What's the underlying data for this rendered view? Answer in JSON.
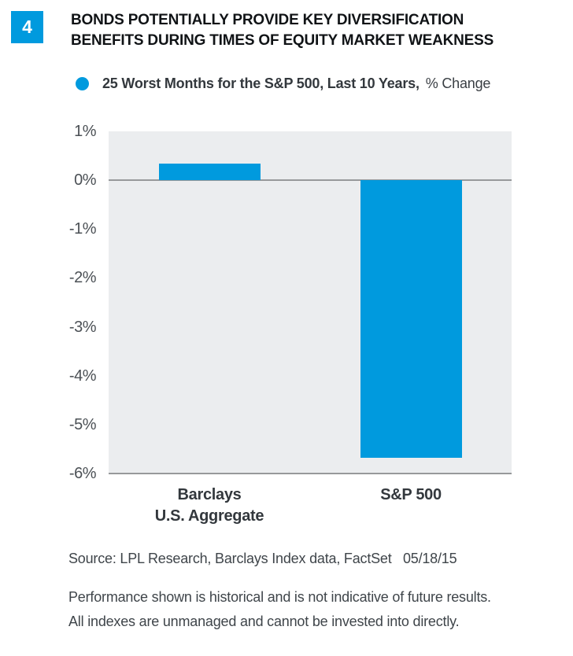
{
  "header": {
    "figure_number": "4",
    "title_lines": [
      "BONDS POTENTIALLY PROVIDE KEY DIVERSIFICATION",
      "BENEFITS DURING TIMES OF EQUITY MARKET WEAKNESS"
    ]
  },
  "legend": {
    "marker": "blue-dot",
    "label_bold": "25 Worst Months for the S&P 500, Last 10 Years,",
    "label_regular": "% Change"
  },
  "chart_data": {
    "type": "bar",
    "title": "25 Worst Months for the S&P 500, Last 10 Years, % Change",
    "categories": [
      "Barclays U.S. Aggregate",
      "S&P 500"
    ],
    "category_label_lines": [
      [
        "Barclays",
        "U.S. Aggregate"
      ],
      [
        "S&P 500"
      ]
    ],
    "values": [
      0.34,
      -5.68
    ],
    "unit": "%",
    "ylim": [
      -6,
      1
    ],
    "ytick_values": [
      1,
      0,
      -1,
      -2,
      -3,
      -4,
      -5,
      -6
    ],
    "ytick_labels": [
      "1%",
      "0%",
      "-1%",
      "-2%",
      "-3%",
      "-4%",
      "-5%",
      "-6%"
    ],
    "grid": false,
    "zero_line": true,
    "legend_position": "top",
    "bar_color": "#009ade",
    "plot_background": "#ebedef",
    "axis_line_color": "#97999b"
  },
  "colors": {
    "accent_blue": "#009ade",
    "plot_background": "#ebedef",
    "axis_line": "#97999b",
    "text_dark": "#33383d"
  },
  "footer": {
    "source": "Source: LPL Research, Barclays Index data, FactSet   05/18/15",
    "disclaimer_lines": [
      "Performance shown is historical and is not indicative of future results.",
      "All indexes are unmanaged and cannot be invested into directly."
    ]
  }
}
